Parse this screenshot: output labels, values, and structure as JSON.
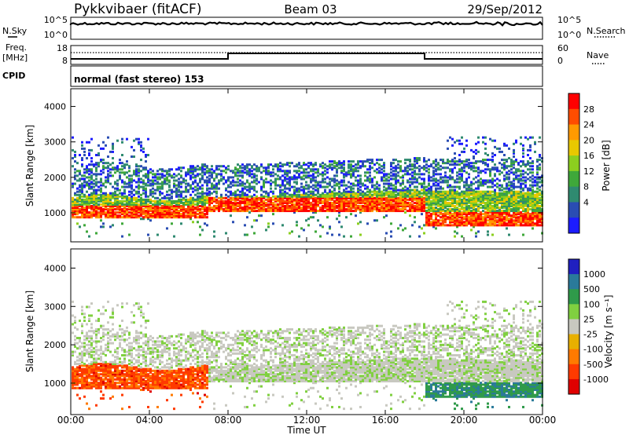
{
  "header": {
    "radar": "Pykkvibaer (fitACF)",
    "beam": "Beam 03",
    "date": "29/Sep/2012"
  },
  "aux": {
    "nsky_label": "N.Sky",
    "nsky_ticks": [
      "10^5",
      "10^0"
    ],
    "nsearch_label": "N.Search",
    "nsearch_ticks": [
      "10^5",
      "10^0"
    ],
    "freq_label": "Freq.",
    "freq_unit": "[MHz]",
    "freq_ticks": [
      "18",
      "8"
    ],
    "nave_label": "Nave",
    "nave_ticks": [
      "60",
      "0"
    ],
    "cpid_label": "CPID",
    "cpid_text": "normal (fast stereo) 153"
  },
  "chart_data": [
    {
      "type": "heatmap",
      "ylabel": "Slant Range [km]",
      "xlabel": "",
      "yticks": [
        "4000",
        "3000",
        "2000",
        "1000"
      ],
      "ylim": [
        180,
        4500
      ],
      "xlim_hours": [
        0,
        24
      ],
      "colorbar": {
        "label": "Power [dB]",
        "ticks": [
          "28",
          "24",
          "20",
          "16",
          "12",
          "8",
          "4"
        ],
        "colors": [
          "#ff0000",
          "#ff4d00",
          "#ff9a00",
          "#e8c800",
          "#8ccf1f",
          "#3fa83a",
          "#2f8a70",
          "#2a4db3",
          "#1c1cff"
        ]
      }
    },
    {
      "type": "heatmap",
      "ylabel": "Slant Range [km]",
      "xlabel": "Time UT",
      "yticks": [
        "4000",
        "3000",
        "2000",
        "1000"
      ],
      "ylim": [
        180,
        4500
      ],
      "xlim_hours": [
        0,
        24
      ],
      "xticks": [
        "00:00",
        "04:00",
        "08:00",
        "12:00",
        "16:00",
        "20:00",
        "00:00"
      ],
      "colorbar": {
        "label": "Velocity [m s⁻¹]",
        "ticks": [
          "1000",
          "500",
          "100",
          "25",
          "-25",
          "-100",
          "-500",
          "-1000"
        ],
        "colors": [
          "#2020c0",
          "#2a7a9a",
          "#2f9a4a",
          "#80d040",
          "#c8c8c0",
          "#e8b000",
          "#ff7a00",
          "#ff3a00",
          "#e00000"
        ]
      }
    }
  ]
}
